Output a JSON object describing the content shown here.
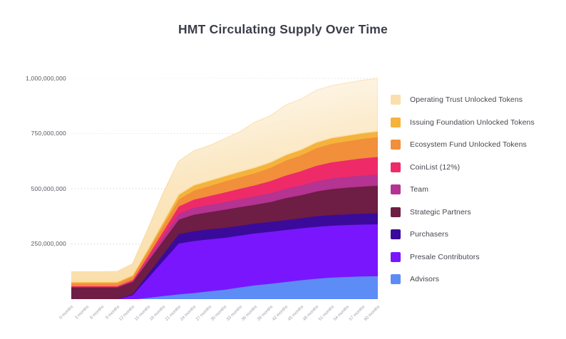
{
  "title": "HMT Circulating Supply Over Time",
  "y_axis": {
    "tick_values_millions": [
      250,
      500,
      750,
      1000
    ],
    "tick_labels": [
      "250,000,000",
      "500,000,000",
      "750,000,000",
      "1,000,000,000"
    ]
  },
  "x_axis": {
    "unit": "months",
    "labels": [
      "0 months",
      "3 months",
      "6 months",
      "9 months",
      "12 months",
      "15 months",
      "18 months",
      "21 months",
      "24 months",
      "27 months",
      "30 months",
      "33 months",
      "36 months",
      "39 months",
      "42 months",
      "45 months",
      "48 months",
      "51 months",
      "54 months",
      "57 months",
      "60 months"
    ]
  },
  "legend": [
    {
      "label": "Operating Trust Unlocked Tokens",
      "color": "#fadfac"
    },
    {
      "label": "Issuing Foundation Unlocked Tokens",
      "color": "#f5b33c"
    },
    {
      "label": "Ecosystem Fund Unlocked Tokens",
      "color": "#f18f3b"
    },
    {
      "label": "CoinList (12%)",
      "color": "#ee2a69"
    },
    {
      "label": "Team",
      "color": "#b53391"
    },
    {
      "label": "Strategic Partners",
      "color": "#6e1d45"
    },
    {
      "label": "Purchasers",
      "color": "#3a0b9b"
    },
    {
      "label": "Presale Contributors",
      "color": "#7916fe"
    },
    {
      "label": "Advisors",
      "color": "#5d8cf6"
    }
  ],
  "chart_data": {
    "type": "area",
    "stacked": true,
    "title": "HMT Circulating Supply Over Time",
    "xlabel": "",
    "ylabel": "",
    "x_unit": "months",
    "x": [
      0,
      3,
      6,
      9,
      12,
      15,
      18,
      21,
      24,
      27,
      30,
      33,
      36,
      39,
      42,
      45,
      48,
      51,
      54,
      57,
      60
    ],
    "values_unit": "millions of HMT tokens",
    "ylim_millions": [
      0,
      1000
    ],
    "grid": "dotted-horizontal",
    "legend_position": "right",
    "series": [
      {
        "name": "Advisors",
        "color": "#5d8cf6",
        "values": [
          0,
          0,
          0,
          0,
          0,
          8,
          16,
          24,
          30,
          38,
          45,
          55,
          65,
          72,
          80,
          88,
          95,
          100,
          103,
          105,
          106
        ]
      },
      {
        "name": "Presale Contributors",
        "color": "#7916fe",
        "values": [
          0,
          0,
          0,
          0,
          20,
          90,
          160,
          230,
          235,
          235,
          235,
          235,
          235,
          235,
          235,
          235,
          235,
          235,
          235,
          235,
          235
        ]
      },
      {
        "name": "Purchasers",
        "color": "#3a0b9b",
        "values": [
          0,
          0,
          0,
          0,
          5,
          18,
          30,
          42,
          45,
          45,
          45,
          45,
          45,
          45,
          45,
          45,
          48,
          48,
          48,
          49,
          50
        ]
      },
      {
        "name": "Strategic Partners",
        "color": "#6e1d45",
        "values": [
          55,
          55,
          55,
          55,
          55,
          58,
          62,
          66,
          75,
          78,
          82,
          84,
          85,
          90,
          100,
          105,
          112,
          118,
          121,
          123,
          125
        ]
      },
      {
        "name": "Team",
        "color": "#b53391",
        "values": [
          2,
          2,
          2,
          2,
          3,
          10,
          18,
          26,
          32,
          33,
          34,
          36,
          38,
          40,
          42,
          44,
          46,
          48,
          49,
          50,
          50
        ]
      },
      {
        "name": "CoinList (12%)",
        "color": "#ee2a69",
        "values": [
          4,
          4,
          4,
          4,
          6,
          14,
          24,
          34,
          36,
          40,
          44,
          47,
          50,
          55,
          60,
          65,
          70,
          73,
          75,
          78,
          80
        ]
      },
      {
        "name": "Ecosystem Fund Unlocked Tokens",
        "color": "#f18f3b",
        "values": [
          13,
          13,
          13,
          13,
          15,
          20,
          26,
          32,
          41,
          45,
          50,
          52,
          55,
          60,
          68,
          72,
          80,
          84,
          86,
          88,
          90
        ]
      },
      {
        "name": "Issuing Foundation Unlocked Tokens",
        "color": "#f5b33c",
        "values": [
          5,
          5,
          5,
          5,
          6,
          10,
          15,
          20,
          23,
          23,
          23,
          24,
          24,
          24,
          24,
          24,
          25,
          25,
          25,
          25,
          25
        ]
      },
      {
        "name": "Operating Trust Unlocked Tokens",
        "color": "#fadfac",
        "color_light": "#fcefd6",
        "values": [
          45,
          45,
          45,
          46,
          50,
          90,
          130,
          150,
          155,
          158,
          168,
          180,
          205,
          210,
          225,
          228,
          235,
          236,
          237,
          238,
          239
        ]
      }
    ]
  }
}
